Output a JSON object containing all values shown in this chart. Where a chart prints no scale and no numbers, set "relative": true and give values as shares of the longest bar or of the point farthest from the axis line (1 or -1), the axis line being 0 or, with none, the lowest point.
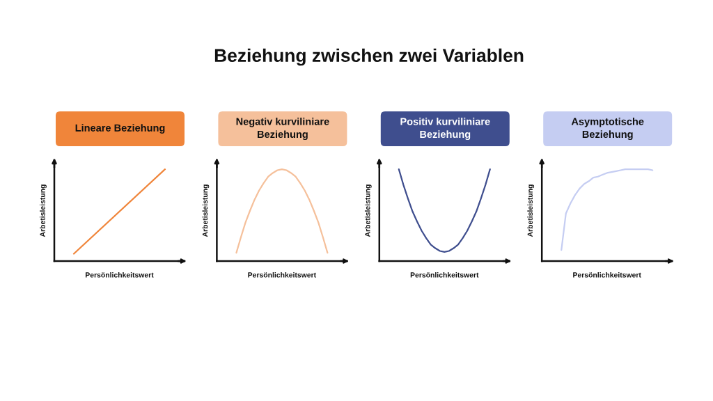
{
  "chart_data": [
    {
      "type": "other",
      "title": "Beziehung zwischen zwei Variablen"
    },
    {
      "type": "line",
      "title": "Lineare Beziehung",
      "xlabel": "Persönlichkeitswert",
      "ylabel": "Arbetisleistung",
      "relative": true,
      "categories": [
        null,
        null
      ],
      "series": [
        {
          "color": "#f0853a",
          "values": [
            0.08,
            1
          ]
        }
      ]
    },
    {
      "type": "line",
      "title": "Negativ kurviliniare\nBeziehung",
      "xlabel": "Persönlichkeitswert",
      "ylabel": "Arbetisleistung",
      "relative": true,
      "categories": [
        null,
        null,
        null,
        null,
        null,
        null,
        null,
        null,
        null,
        null,
        null,
        null,
        null,
        null,
        null,
        null,
        null,
        null,
        null,
        null,
        null
      ],
      "series": [
        {
          "color": "#f5c09b",
          "values": [
            0.09,
            0.26,
            0.42,
            0.55,
            0.67,
            0.77,
            0.85,
            0.92,
            0.96,
            0.99,
            1,
            0.99,
            0.96,
            0.92,
            0.85,
            0.77,
            0.67,
            0.55,
            0.42,
            0.26,
            0.09
          ]
        }
      ]
    },
    {
      "type": "line",
      "title": "Positiv kurviliniare\nBeziehung",
      "xlabel": "Persönlichkeitswert",
      "ylabel": "Arbetisleistung",
      "relative": true,
      "categories": [
        null,
        null,
        null,
        null,
        null,
        null,
        null,
        null,
        null,
        null,
        null,
        null,
        null,
        null,
        null,
        null,
        null,
        null,
        null,
        null,
        null
      ],
      "series": [
        {
          "color": "#3f4e8e",
          "values": [
            1,
            0.83,
            0.68,
            0.54,
            0.43,
            0.33,
            0.25,
            0.18,
            0.14,
            0.11,
            0.1,
            0.11,
            0.14,
            0.18,
            0.25,
            0.33,
            0.43,
            0.54,
            0.68,
            0.83,
            1
          ]
        }
      ]
    },
    {
      "type": "line",
      "title": "Asymptotische\nBeziehung",
      "xlabel": "Persönlichkeitswert",
      "ylabel": "Arbetisleistung",
      "relative": true,
      "categories": [
        null,
        null,
        null,
        null,
        null,
        null,
        null,
        null,
        null,
        null,
        null,
        null,
        null,
        null,
        null,
        null,
        null,
        null,
        null,
        null,
        null
      ],
      "series": [
        {
          "color": "#c5cdf2",
          "values": [
            0.12,
            0.52,
            0.63,
            0.72,
            0.79,
            0.84,
            0.87,
            0.91,
            0.92,
            0.94,
            0.96,
            0.97,
            0.98,
            0.99,
            1,
            1,
            1,
            1,
            1,
            1,
            0.99
          ]
        }
      ]
    }
  ]
}
